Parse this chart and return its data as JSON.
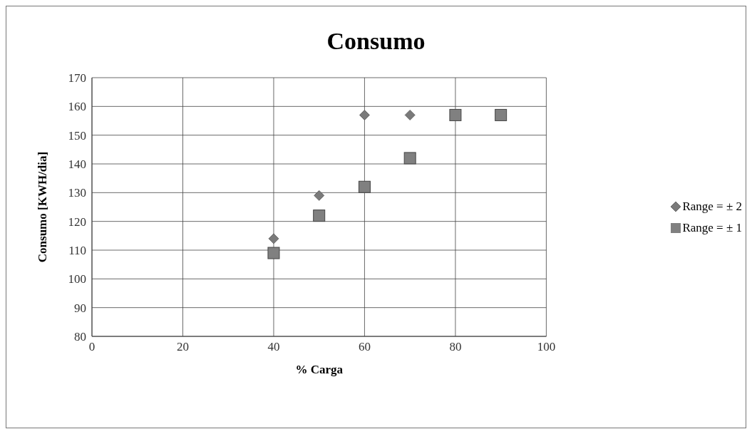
{
  "chart_data": {
    "type": "scatter",
    "title": "Consumo",
    "xlabel": "% Carga",
    "ylabel": "Consumo [KWH/dia]",
    "xlim": [
      0,
      100
    ],
    "xticks": [
      0,
      20,
      40,
      60,
      80,
      100
    ],
    "ylim": [
      80,
      170
    ],
    "yticks": [
      80,
      90,
      100,
      110,
      120,
      130,
      140,
      150,
      160,
      170
    ],
    "grid": true,
    "legend": "right",
    "series": [
      {
        "name": "Range = ± 2",
        "color": "#7a7a7a",
        "marker": "diamond",
        "x": [
          40,
          50,
          60,
          70
        ],
        "values": [
          114,
          129,
          157,
          157
        ]
      },
      {
        "name": "Range = ± 1",
        "color": "#808080",
        "marker": "square",
        "x": [
          40,
          50,
          60,
          70,
          80,
          90
        ],
        "values": [
          109,
          122,
          132,
          142,
          157,
          157
        ]
      }
    ]
  }
}
